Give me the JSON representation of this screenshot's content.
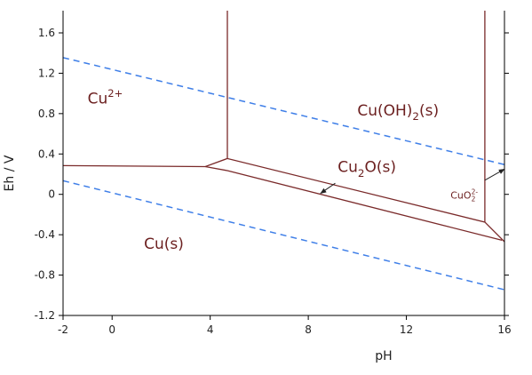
{
  "chart_data": {
    "type": "line",
    "xlabel": "pH",
    "ylabel": "Eh / V",
    "xlim": [
      -2,
      16
    ],
    "ylim": [
      -1.2,
      1.82
    ],
    "xticks": [
      -2,
      0,
      4,
      8,
      12,
      16
    ],
    "yticks": [
      -1.2,
      -0.8,
      -0.4,
      0,
      0.4,
      0.8,
      1.2,
      1.6
    ],
    "grid": false,
    "series": [
      {
        "values": [
          [
            -2,
            1.355
          ],
          [
            16,
            0.295
          ]
        ],
        "color": "#3f7fe8"
      },
      {
        "values": [
          [
            -2,
            0.135
          ],
          [
            16,
            -0.945
          ]
        ],
        "color": "#3f7fe8"
      }
    ],
    "boundaries": [
      [
        [
          -2,
          0.285
        ],
        [
          3.8,
          0.275
        ],
        [
          4.7,
          0.355
        ],
        [
          15.2,
          -0.275
        ],
        [
          16,
          -0.47
        ]
      ],
      [
        [
          3.8,
          0.275
        ],
        [
          4.7,
          0.235
        ],
        [
          15.9,
          -0.455
        ]
      ],
      [
        [
          4.7,
          1.82
        ],
        [
          4.7,
          0.355
        ]
      ],
      [
        [
          15.2,
          1.82
        ],
        [
          15.2,
          -0.275
        ]
      ]
    ],
    "regions": [
      {
        "name": "Cu",
        "sup": "2+",
        "sub": "",
        "suffix": "",
        "x": -1,
        "y": 0.9,
        "size": 17
      },
      {
        "name": "Cu(OH)",
        "sup": "",
        "sub": "2",
        "suffix": "(s)",
        "x": 10,
        "y": 0.78,
        "size": 17
      },
      {
        "name": "Cu",
        "sup": "",
        "sub": "2",
        "suffix": "O(s)",
        "x": 9.2,
        "y": 0.22,
        "size": 17
      },
      {
        "name": "CuO",
        "sup": "2-",
        "sub": "2",
        "suffix": "",
        "x": 13.8,
        "y": -0.04,
        "size": 11
      },
      {
        "name": "Cu(s)",
        "sup": "",
        "sub": "",
        "suffix": "",
        "x": 1.3,
        "y": -0.54,
        "size": 17
      }
    ],
    "pointers": [
      [
        [
          9.1,
          0.11
        ],
        [
          8.5,
          0.01
        ]
      ],
      [
        [
          15.2,
          0.14
        ],
        [
          16,
          0.25
        ]
      ]
    ]
  },
  "colors": {
    "boundary": "#7a2a2a",
    "water": "#3f7fe8",
    "text": "#6b1f1f"
  }
}
